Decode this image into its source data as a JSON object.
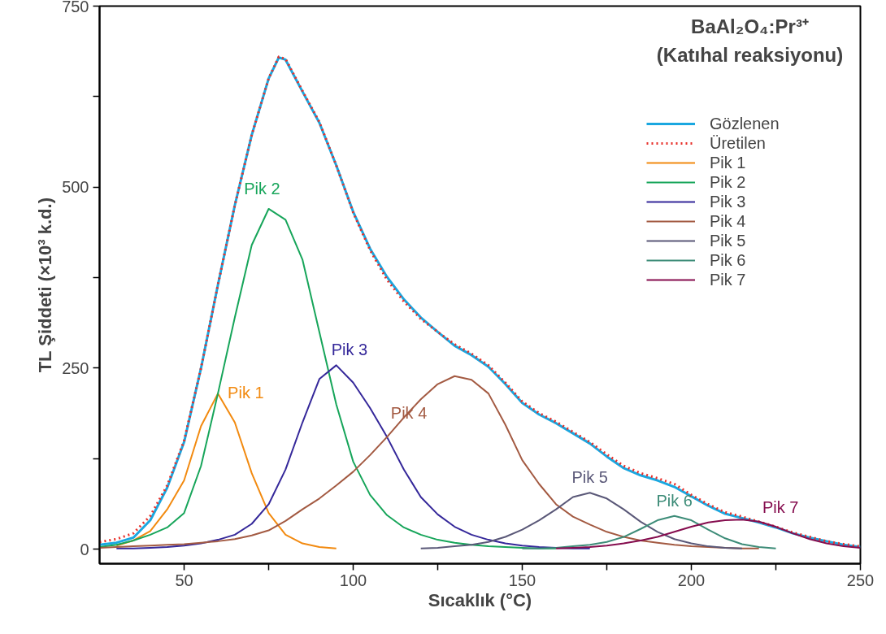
{
  "chart_data": {
    "type": "line",
    "title": "BaAl₂O₄:Pr³⁺",
    "subtitle": "(Katıhal reaksiyonu)",
    "xlabel": "Sıcaklık (°C)",
    "ylabel": "TL Şiddeti (×10³ k.d.)",
    "xlim": [
      25,
      250
    ],
    "ylim": [
      -20,
      750
    ],
    "xticks": [
      50,
      {
        "value": 75,
        "label": null
      },
      100,
      {
        "value": 125,
        "label": null
      },
      150,
      {
        "value": 175,
        "label": null
      },
      200,
      {
        "value": 225,
        "label": null
      },
      250
    ],
    "yticks": [
      0,
      {
        "value": 125,
        "label": null
      },
      250,
      {
        "value": 375,
        "label": null
      },
      500,
      {
        "value": 625,
        "label": null
      },
      750
    ],
    "grid": false,
    "legend": "top right",
    "x": [
      25,
      30,
      35,
      40,
      45,
      50,
      55,
      60,
      65,
      70,
      75,
      80,
      85,
      90,
      95,
      100,
      105,
      110,
      115,
      120,
      125,
      130,
      135,
      140,
      145,
      150,
      155,
      160,
      165,
      170,
      175,
      180,
      185,
      190,
      195,
      200,
      205,
      210,
      215,
      220,
      225,
      230,
      235,
      240,
      245,
      250
    ],
    "series": [
      {
        "name": "Gözlenen",
        "color": "#1aa7e0",
        "line_style": "solid",
        "x": [
          25,
          30,
          35,
          40,
          45,
          50,
          55,
          60,
          65,
          70,
          75,
          78,
          80,
          85,
          90,
          95,
          100,
          105,
          110,
          115,
          120,
          125,
          130,
          135,
          140,
          145,
          150,
          155,
          160,
          165,
          170,
          175,
          180,
          185,
          190,
          195,
          200,
          205,
          210,
          215,
          220,
          225,
          230,
          235,
          240,
          245,
          250
        ],
        "values": [
          6,
          9,
          16,
          40,
          85,
          148,
          250,
          365,
          475,
          572,
          650,
          679,
          676,
          632,
          589,
          530,
          466,
          415,
          376,
          345,
          320,
          300,
          281,
          268,
          252,
          228,
          202,
          186,
          174,
          160,
          146,
          128,
          112,
          102,
          95,
          86,
          73,
          60,
          49,
          43,
          37,
          30,
          22,
          16,
          11,
          6,
          3
        ]
      },
      {
        "name": "Üretilen",
        "color": "#e8302a",
        "line_style": "dotted",
        "x": [
          25,
          30,
          35,
          40,
          45,
          50,
          55,
          60,
          65,
          70,
          75,
          78,
          80,
          85,
          90,
          95,
          100,
          105,
          110,
          115,
          120,
          125,
          130,
          135,
          140,
          145,
          150,
          155,
          160,
          165,
          170,
          175,
          180,
          185,
          190,
          195,
          200,
          205,
          210,
          215,
          220,
          225,
          230,
          235,
          240,
          245,
          250
        ],
        "values": [
          10,
          14,
          22,
          46,
          88,
          150,
          250,
          365,
          475,
          572,
          650,
          680,
          677,
          633,
          590,
          530,
          465,
          413,
          372,
          342,
          318,
          300,
          283,
          270,
          254,
          230,
          204,
          188,
          176,
          162,
          148,
          131,
          115,
          105,
          98,
          90,
          75,
          62,
          51,
          45,
          38,
          31,
          23,
          17,
          11,
          7,
          4
        ]
      },
      {
        "name": "Pik 1",
        "color": "#f28a10",
        "line_style": "solid",
        "values": [
          null,
          5,
          12,
          25,
          55,
          95,
          170,
          215,
          175,
          105,
          50,
          20,
          8,
          3,
          1,
          null,
          null,
          null,
          null,
          null,
          null,
          null,
          null,
          null,
          null,
          null,
          null,
          null,
          null,
          null,
          null,
          null,
          null,
          null,
          null,
          null,
          null,
          null,
          null,
          null,
          null,
          null,
          null,
          null,
          null,
          null
        ]
      },
      {
        "name": "Pik 2",
        "color": "#17a55a",
        "line_style": "solid",
        "values": [
          3,
          6,
          12,
          20,
          30,
          50,
          115,
          215,
          320,
          420,
          470,
          455,
          400,
          300,
          200,
          121,
          75,
          47,
          30,
          20,
          13,
          9,
          6,
          4,
          3,
          2,
          1,
          1,
          null,
          null,
          null,
          null,
          null,
          null,
          null,
          null,
          null,
          null,
          null,
          null,
          null,
          null,
          null,
          null,
          null,
          null
        ]
      },
      {
        "name": "Pik 3",
        "color": "#35289a",
        "line_style": "solid",
        "values": [
          null,
          1,
          1,
          2,
          3,
          5,
          8,
          13,
          20,
          35,
          62,
          110,
          175,
          235,
          254,
          230,
          195,
          155,
          110,
          72,
          48,
          31,
          20,
          13,
          8,
          5,
          3,
          2,
          1,
          1,
          null,
          null,
          null,
          null,
          null,
          null,
          null,
          null,
          null,
          null,
          null,
          null,
          null,
          null,
          null,
          null
        ]
      },
      {
        "name": "Pik 4",
        "color": "#a35a42",
        "line_style": "solid",
        "values": [
          2,
          3,
          4,
          5,
          6,
          7,
          9,
          11,
          14,
          19,
          26,
          39,
          55,
          70,
          88,
          107,
          130,
          155,
          182,
          207,
          228,
          239,
          234,
          215,
          172,
          123,
          90,
          62,
          45,
          34,
          24,
          17,
          12,
          9,
          6,
          4,
          3,
          2,
          1,
          1,
          null,
          null,
          null,
          null,
          null,
          null
        ]
      },
      {
        "name": "Pik 5",
        "color": "#5a5878",
        "line_style": "solid",
        "values": [
          null,
          null,
          null,
          null,
          null,
          null,
          null,
          null,
          null,
          null,
          null,
          null,
          null,
          null,
          null,
          null,
          null,
          null,
          null,
          1,
          2,
          4,
          6,
          10,
          17,
          27,
          40,
          55,
          72,
          78,
          70,
          55,
          38,
          24,
          14,
          8,
          4,
          2,
          1,
          null,
          null,
          null,
          null,
          null,
          null,
          null
        ]
      },
      {
        "name": "Pik 6",
        "color": "#3d8c78",
        "line_style": "solid",
        "values": [
          null,
          null,
          null,
          null,
          null,
          null,
          null,
          null,
          null,
          null,
          null,
          null,
          null,
          null,
          null,
          null,
          null,
          null,
          null,
          null,
          null,
          null,
          null,
          null,
          null,
          1,
          1,
          2,
          4,
          6,
          10,
          17,
          28,
          40,
          46,
          40,
          27,
          15,
          7,
          3,
          1,
          null,
          null,
          null,
          null,
          null
        ]
      },
      {
        "name": "Pik 7",
        "color": "#850c4e",
        "line_style": "solid",
        "values": [
          null,
          null,
          null,
          null,
          null,
          null,
          null,
          null,
          null,
          null,
          null,
          null,
          null,
          null,
          null,
          null,
          null,
          null,
          null,
          null,
          null,
          null,
          null,
          null,
          null,
          null,
          null,
          1,
          2,
          3,
          5,
          8,
          12,
          17,
          24,
          31,
          37,
          40,
          41,
          38,
          31,
          22,
          14,
          8,
          4,
          2
        ]
      }
    ],
    "annotations": [
      "Pik 1",
      "Pik 2",
      "Pik 3",
      "Pik 4",
      "Pik 5",
      "Pik 6",
      "Pik 7"
    ]
  }
}
